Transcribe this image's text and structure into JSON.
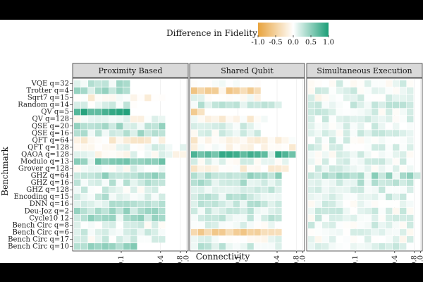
{
  "chart_data": {
    "type": "heatmap",
    "xlabel": "Connectivity",
    "ylabel": "Benchmark",
    "x_scale": "log",
    "x_ticks": [
      "0.1",
      "0.4",
      "0.8",
      "1.0"
    ],
    "x_tick_values": [
      0.1,
      0.4,
      0.8,
      1.0
    ],
    "legend": {
      "title": "Difference in Fidelity",
      "position": "top",
      "ticks": [
        "-1.0",
        "-0.5",
        "0.0",
        "0.5",
        "1.0"
      ],
      "tick_values": [
        -1.0,
        -0.5,
        0.0,
        0.5,
        1.0
      ],
      "range": [
        -1,
        1
      ],
      "colors": {
        "negative": "#e8a33d",
        "zero": "#ffffff",
        "positive": "#1b9e77"
      }
    },
    "facets": [
      "Proximity Based",
      "Shared Qubit",
      "Simultaneous Execution"
    ],
    "benchmarks": [
      "VQE q=32",
      "Trotter q=4",
      "Sqrt7 q=15",
      "Random q=14",
      "QV q=5",
      "QV q=128",
      "QSE q=20",
      "QSE q=16",
      "QFT q=64",
      "QFT q=128",
      "QAOA q=128",
      "Modulo q=13",
      "Grover q=128",
      "GHZ q=64",
      "GHZ q=16",
      "GHZ q=128",
      "Encoding q=15",
      "DNN q=16",
      "Deu-Joz q=2",
      "Cycle10 12",
      "Bench Circ q=8",
      "Bench Circ q=6",
      "Bench Circ q=17",
      "Bench Circ q=10"
    ],
    "grid": true,
    "panel_background": "#ffffff",
    "strip_background": "#d9d9d9"
  }
}
